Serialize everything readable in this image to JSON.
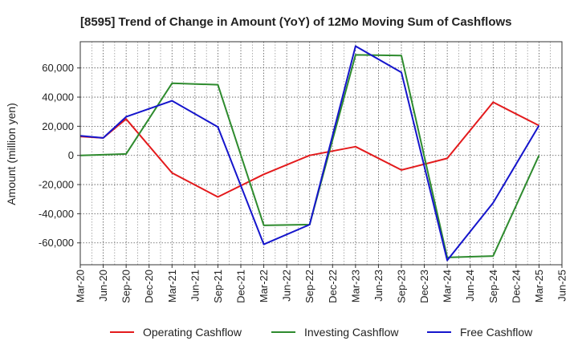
{
  "chart_data": {
    "type": "line",
    "title": "[8595]  Trend of Change in Amount (YoY) of 12Mo Moving Sum of Cashflows",
    "xlabel": "",
    "ylabel": "Amount (million yen)",
    "ylim": [
      -75000,
      78000
    ],
    "yticks": [
      -60000,
      -40000,
      -20000,
      0,
      20000,
      40000,
      60000
    ],
    "ytick_labels": [
      "-60,000",
      "-40,000",
      "-20,000",
      "0",
      "20,000",
      "40,000",
      "60,000"
    ],
    "categories": [
      "Mar-20",
      "Jun-20",
      "Sep-20",
      "Dec-20",
      "Mar-21",
      "Jun-21",
      "Sep-21",
      "Dec-21",
      "Mar-22",
      "Jun-22",
      "Sep-22",
      "Dec-22",
      "Mar-23",
      "Jun-23",
      "Sep-23",
      "Dec-23",
      "Mar-24",
      "Jun-24",
      "Sep-24",
      "Dec-24",
      "Mar-25",
      "Jun-25"
    ],
    "grid": true,
    "legend_position": "bottom",
    "series": [
      {
        "name": "Operating Cashflow",
        "color": "#e31a1c",
        "values": [
          13000,
          12000,
          25000,
          null,
          -12000,
          null,
          -28500,
          null,
          -13000,
          null,
          0,
          null,
          6000,
          null,
          -10000,
          null,
          -2000,
          null,
          36500,
          null,
          20500,
          null
        ]
      },
      {
        "name": "Investing Cashflow",
        "color": "#2e8b2e",
        "values": [
          0,
          null,
          1000,
          null,
          49500,
          null,
          48500,
          null,
          -48000,
          null,
          -47500,
          null,
          69000,
          null,
          68500,
          null,
          -70000,
          null,
          -69000,
          null,
          0,
          null
        ]
      },
      {
        "name": "Free Cashflow",
        "color": "#1515cc",
        "values": [
          13500,
          12000,
          26500,
          null,
          37500,
          null,
          19500,
          null,
          -61000,
          null,
          -47500,
          null,
          75000,
          null,
          57000,
          null,
          -72000,
          null,
          -32500,
          null,
          20500,
          null
        ]
      }
    ]
  }
}
